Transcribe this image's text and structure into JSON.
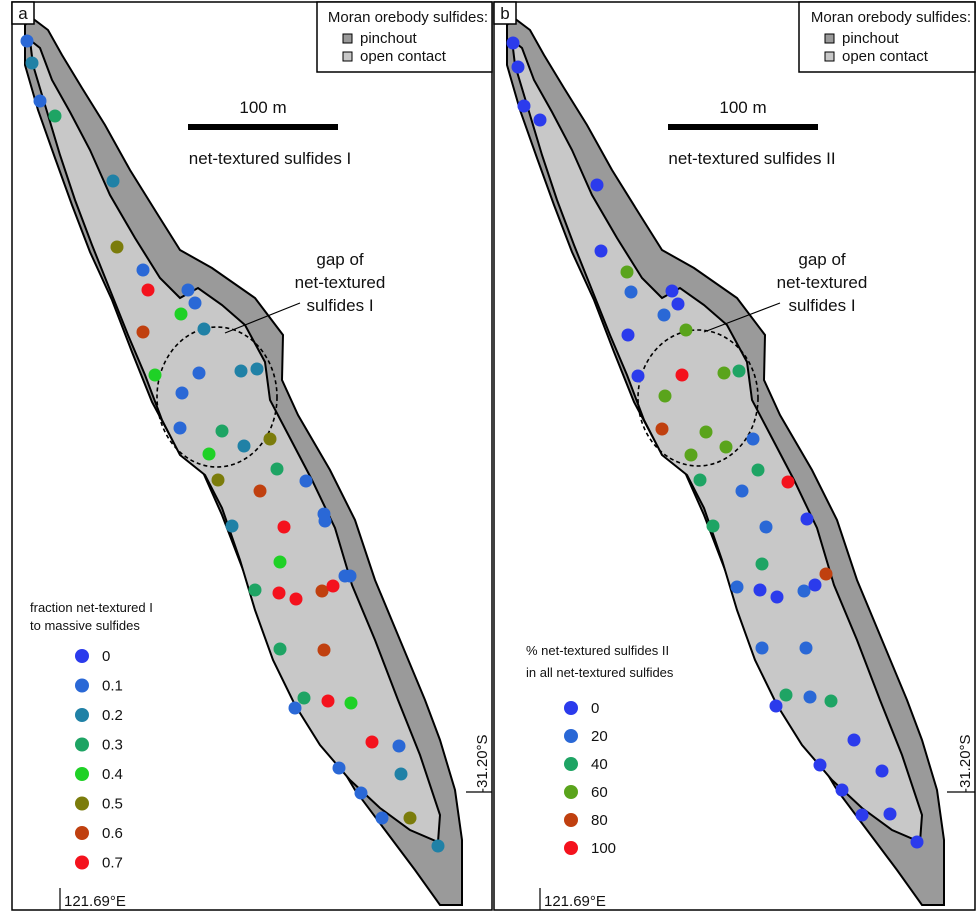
{
  "colors": {
    "outer_zone": "#9a9a9a",
    "inner_zone": "#c8c8c8",
    "outline": "#000000",
    "background": "#ffffff"
  },
  "panels": [
    {
      "id": "a",
      "label": "a",
      "title": "net-textured sulfides I",
      "scale_label": "100 m",
      "gap_label": [
        "gap of",
        "net-textured",
        "sulfides I"
      ],
      "lat_label": "-31.20°S",
      "lon_label": "121.69°E",
      "inset_legend": {
        "title": "Moran orebody sulfides:",
        "items": [
          "pinchout",
          "open contact"
        ]
      },
      "legend": {
        "title": [
          "fraction net-textured I",
          "to massive sulfides"
        ],
        "classes": [
          {
            "label": "0",
            "color": "#2b3bec"
          },
          {
            "label": "0.1",
            "color": "#2a68d6"
          },
          {
            "label": "0.2",
            "color": "#2081a6"
          },
          {
            "label": "0.3",
            "color": "#1ea464"
          },
          {
            "label": "0.4",
            "color": "#1fd126"
          },
          {
            "label": "0.5",
            "color": "#7b7c0b"
          },
          {
            "label": "0.6",
            "color": "#c0400f"
          },
          {
            "label": "0.7",
            "color": "#f4121d"
          }
        ]
      }
    },
    {
      "id": "b",
      "label": "b",
      "title": "net-textured sulfides II",
      "scale_label": "100 m",
      "gap_label": [
        "gap of",
        "net-textured",
        "sulfides I"
      ],
      "lat_label": "-31.20°S",
      "lon_label": "121.69°E",
      "inset_legend": {
        "title": "Moran orebody sulfides:",
        "items": [
          "pinchout",
          "open contact"
        ]
      },
      "legend": {
        "title": [
          "% net-textured sulfides II",
          "in all net-textured sulfides"
        ],
        "classes": [
          {
            "label": "0",
            "color": "#2b3bec"
          },
          {
            "label": "20",
            "color": "#2a68d6"
          },
          {
            "label": "40",
            "color": "#1ea464"
          },
          {
            "label": "60",
            "color": "#5aa41c"
          },
          {
            "label": "80",
            "color": "#c0400f"
          },
          {
            "label": "100",
            "color": "#f4121d"
          }
        ]
      }
    }
  ]
}
